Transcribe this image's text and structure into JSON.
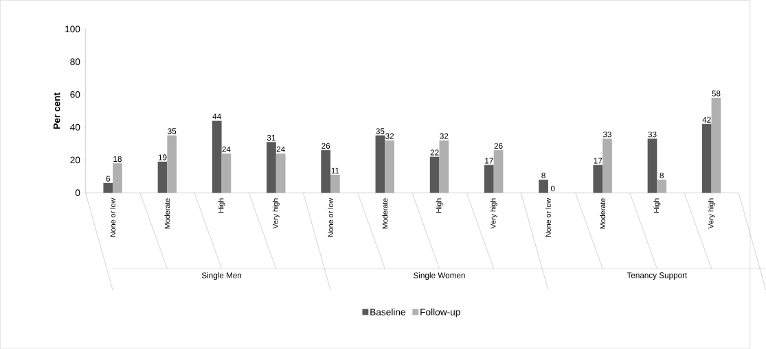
{
  "chart_data": {
    "type": "bar",
    "ylabel": "Per cent",
    "categories": [
      "None or low",
      "Moderate",
      "High",
      "Very high",
      "None or low",
      "Moderate",
      "High",
      "Very high",
      "None or low",
      "Moderate",
      "High",
      "Very high"
    ],
    "series": [
      {
        "name": "Baseline",
        "color": "#595959",
        "values": [
          6,
          19,
          44,
          31,
          26,
          35,
          22,
          17,
          8,
          17,
          33,
          42
        ]
      },
      {
        "name": "Follow-up",
        "color": "#b0b0b0",
        "values": [
          18,
          35,
          24,
          24,
          11,
          32,
          32,
          26,
          0,
          33,
          8,
          58
        ]
      }
    ],
    "ylim": [
      0,
      100
    ],
    "yticks": [
      0,
      20,
      40,
      60,
      80,
      100
    ],
    "data_labels": true,
    "legend": "bottom",
    "annotations": [
      "Single Men",
      "Single Women",
      "Tenancy Support"
    ]
  }
}
